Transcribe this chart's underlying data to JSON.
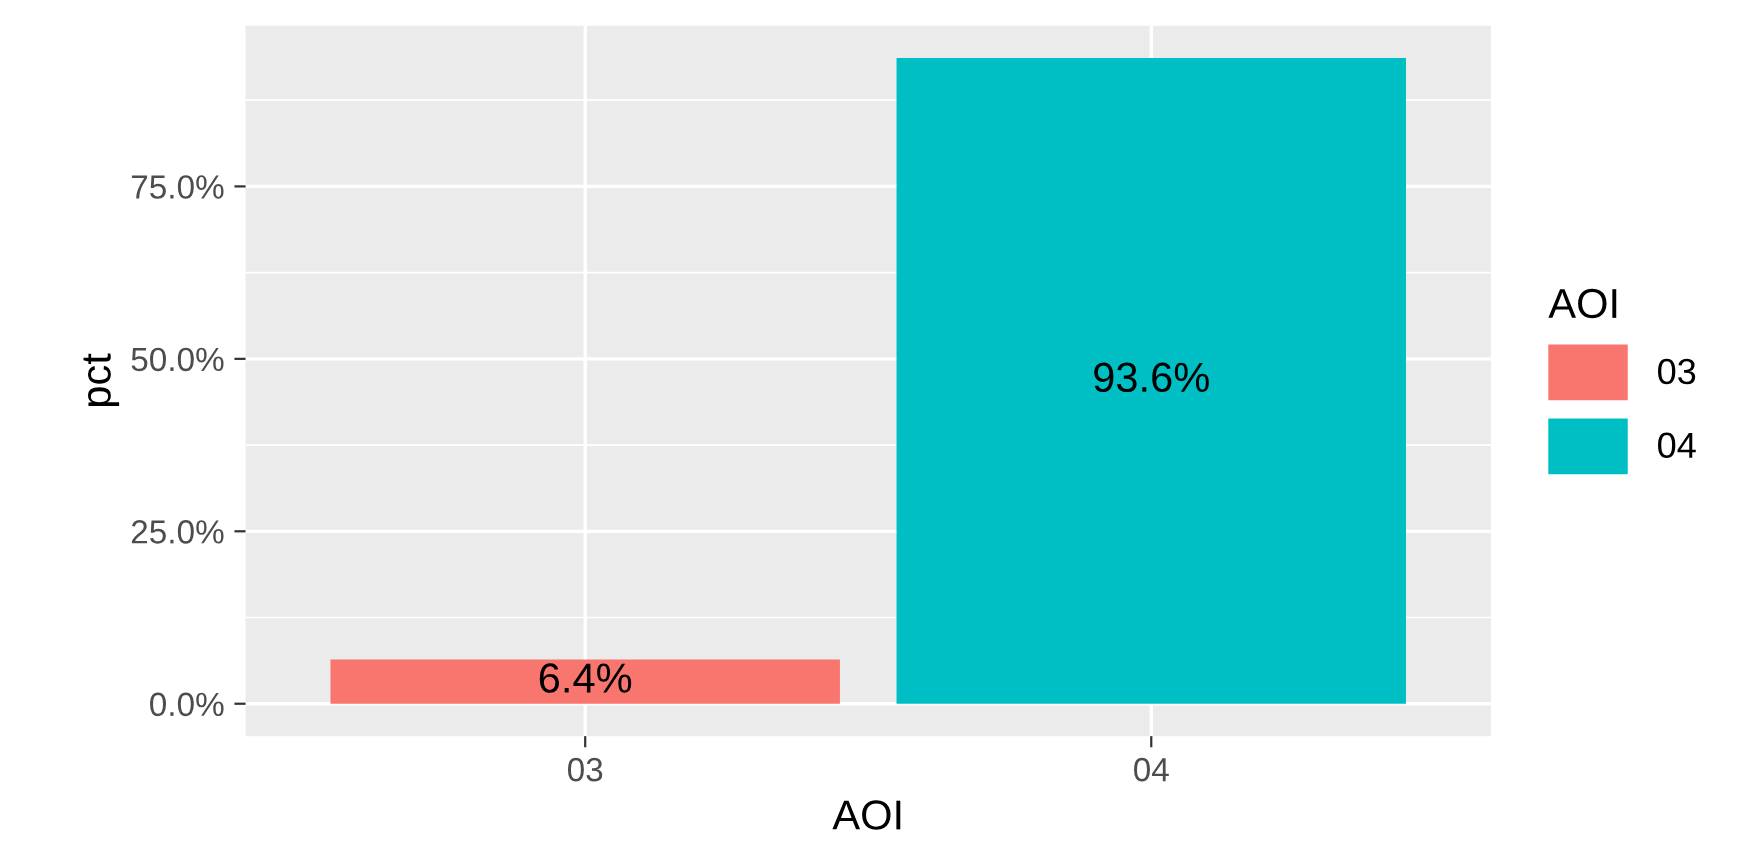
{
  "chart_data": {
    "type": "bar",
    "xlabel": "AOI",
    "ylabel": "pct",
    "legend_title": "AOI",
    "categories": [
      "03",
      "04"
    ],
    "series": [
      {
        "name": "03",
        "color": "#f8766d",
        "values": [
          6.4,
          null
        ],
        "value_labels": [
          "6.4%",
          null
        ]
      },
      {
        "name": "04",
        "color": "#00bfc4",
        "values": [
          null,
          93.6
        ],
        "value_labels": [
          null,
          "93.6%"
        ]
      }
    ],
    "ylim": [
      -4.7,
      98.3
    ],
    "yticks": [
      {
        "value": 0,
        "label": "0.0%"
      },
      {
        "value": 25,
        "label": "25.0%"
      },
      {
        "value": 50,
        "label": "50.0%"
      },
      {
        "value": 75,
        "label": "75.0%"
      }
    ],
    "grid": true,
    "legend": "right"
  }
}
